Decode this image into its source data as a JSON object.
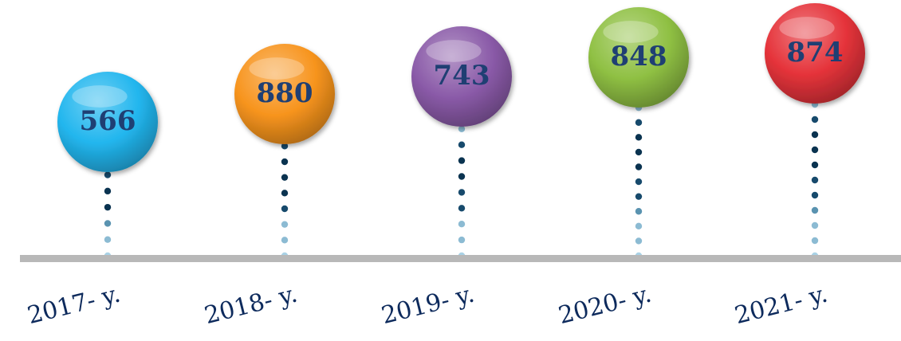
{
  "chart_data": {
    "type": "scatter",
    "categories": [
      "2017- y.",
      "2018- y.",
      "2019- y.",
      "2020- y.",
      "2021- y."
    ],
    "values": [
      566,
      880,
      743,
      848,
      874
    ],
    "colors": [
      "#22b6ee",
      "#f7941d",
      "#8a5aa8",
      "#8fc043",
      "#e5333a"
    ],
    "title": "",
    "xlabel": "",
    "ylabel": ""
  }
}
